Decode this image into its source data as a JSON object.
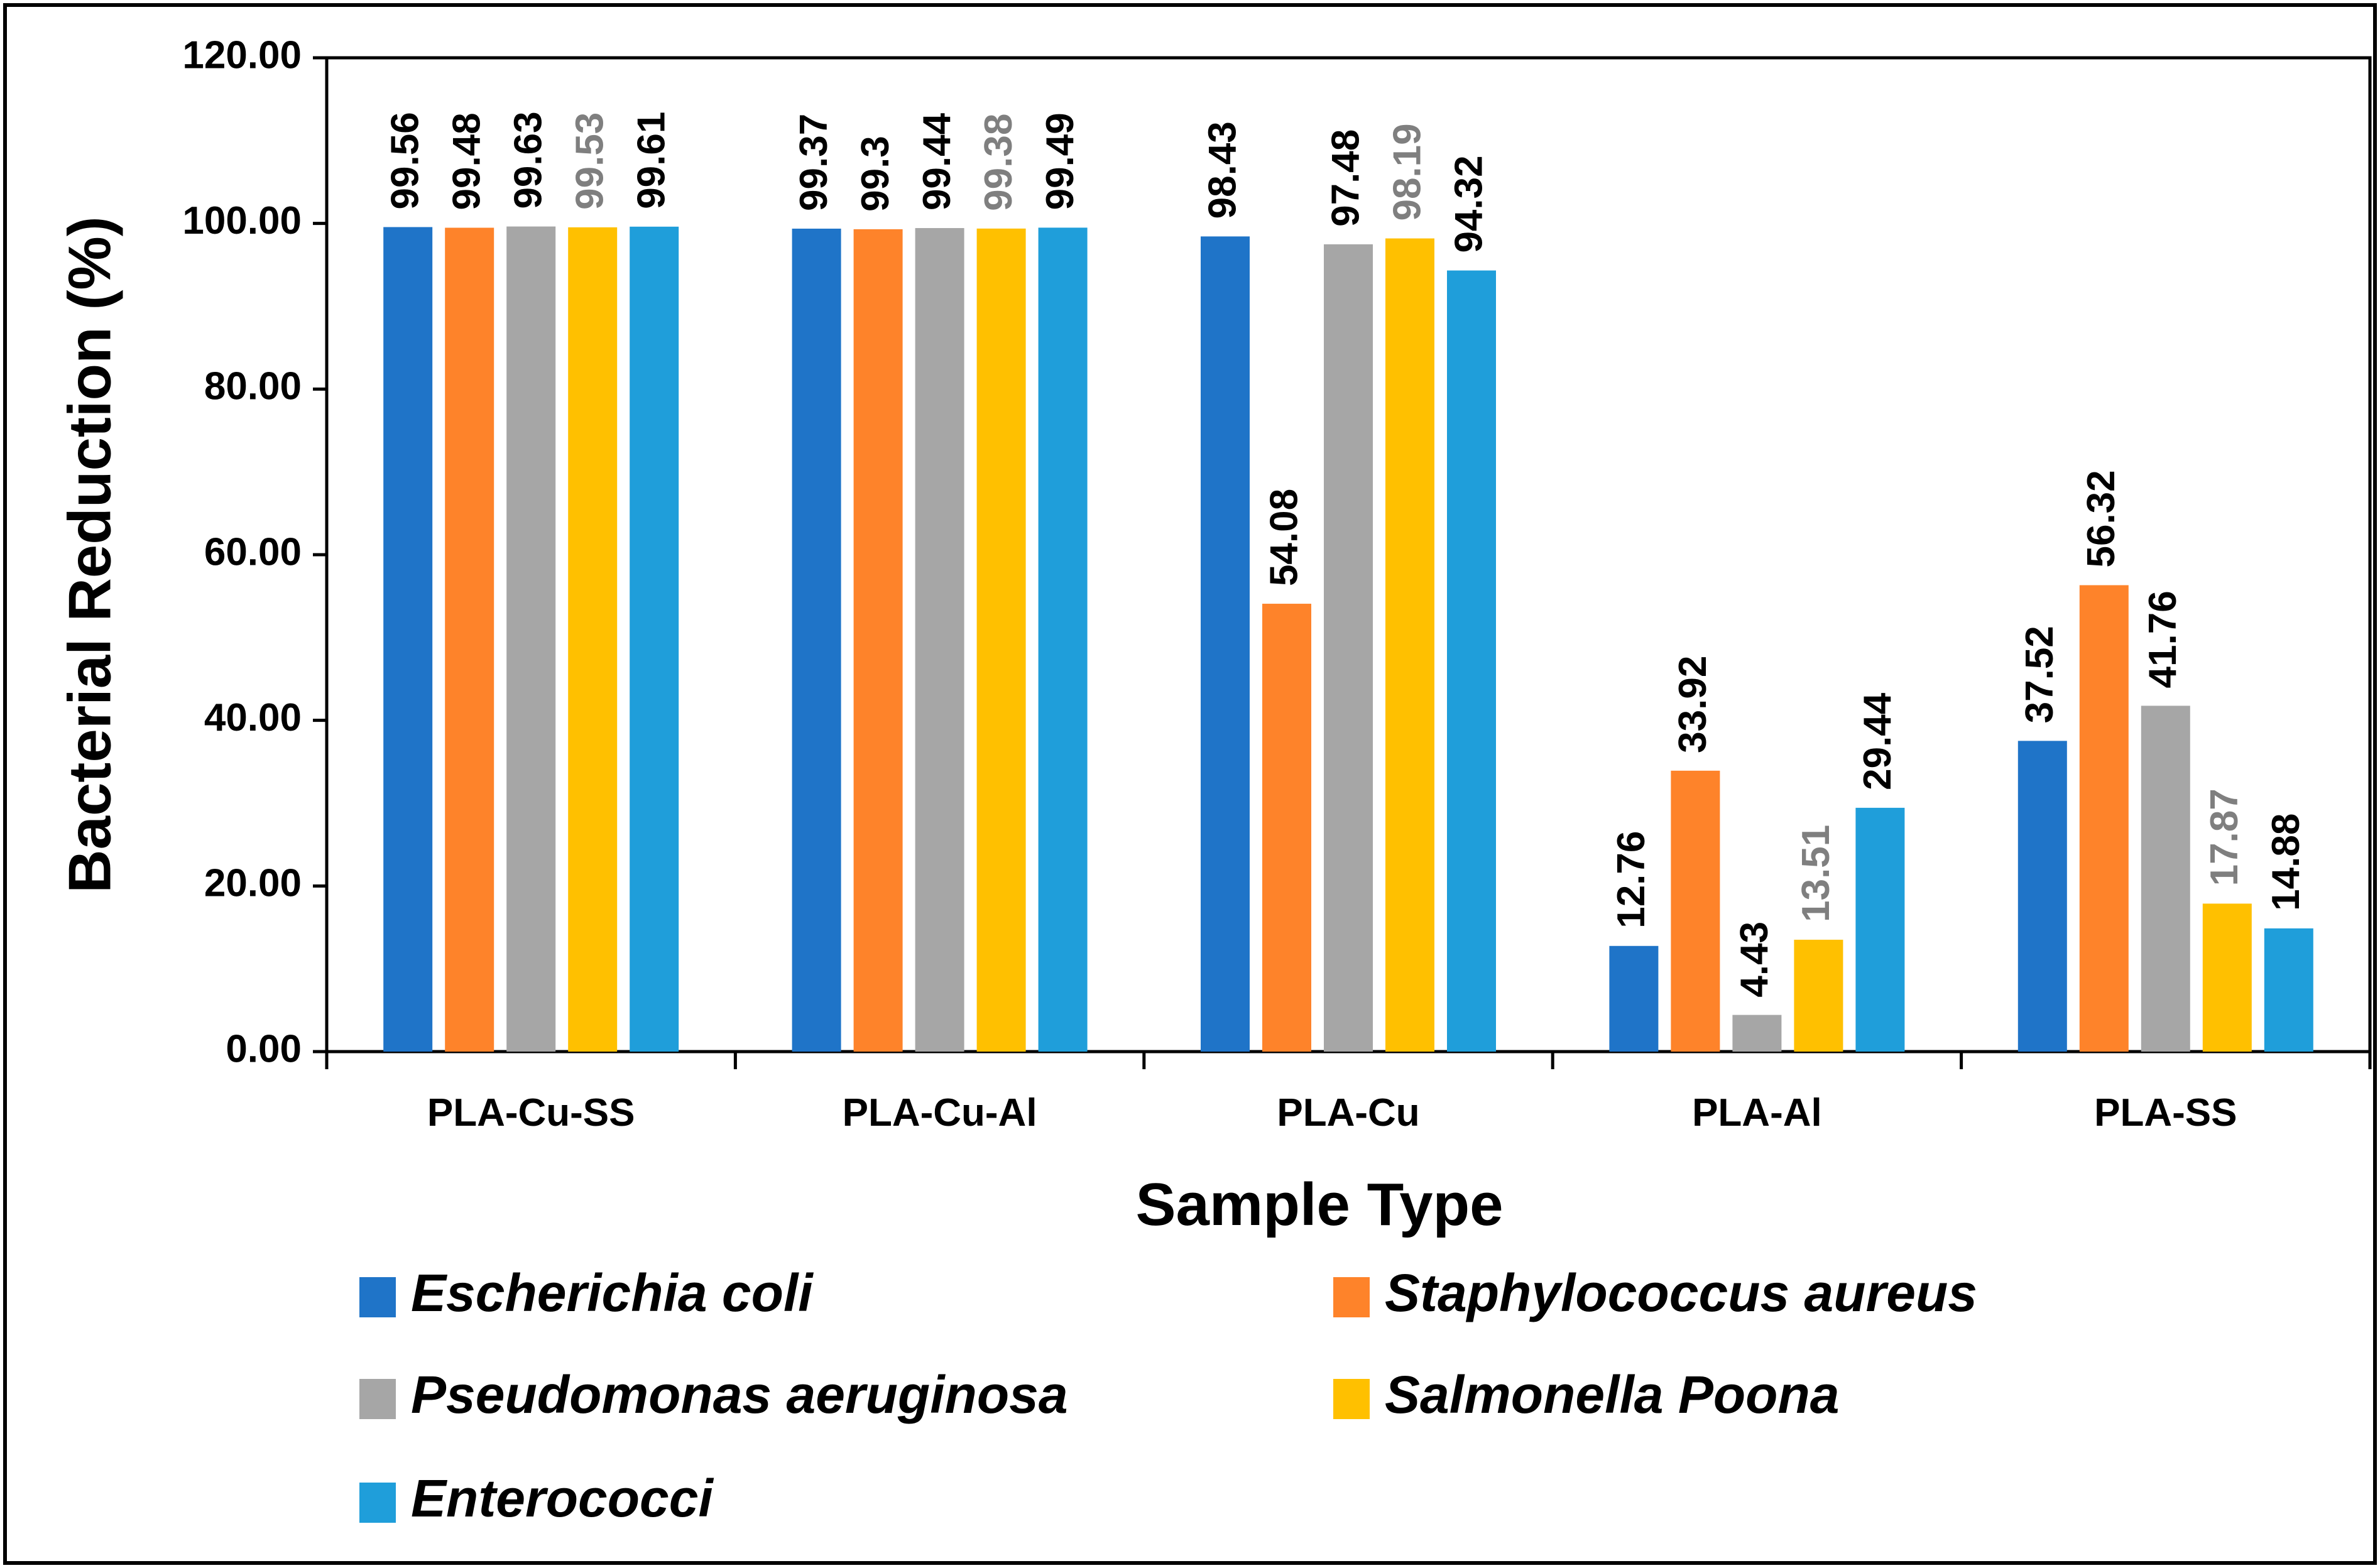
{
  "chart_data": {
    "type": "bar",
    "title": "",
    "xlabel": "Sample Type",
    "ylabel": "Bacterial Reduction (%)",
    "ylim": [
      0,
      120
    ],
    "yticks": [
      "0.00",
      "20.00",
      "40.00",
      "60.00",
      "80.00",
      "100.00",
      "120.00"
    ],
    "categories": [
      "PLA-Cu-SS",
      "PLA-Cu-Al",
      "PLA-Cu",
      "PLA-Al",
      "PLA-SS"
    ],
    "legend_position": "bottom",
    "series": [
      {
        "name": "Escherichia coli",
        "color": "#1F74C8",
        "label_color": "#000000",
        "values": [
          99.56,
          99.37,
          98.43,
          12.76,
          37.52
        ],
        "labels": [
          "99.56",
          "99.37",
          "98.43",
          "12.76",
          "37.52"
        ]
      },
      {
        "name": "Staphylococcus aureus",
        "color": "#FE832A",
        "label_color": "#000000",
        "values": [
          99.48,
          99.3,
          54.08,
          33.92,
          56.32
        ],
        "labels": [
          "99.48",
          "99.3",
          "54.08",
          "33.92",
          "56.32"
        ]
      },
      {
        "name": "Pseudomonas aeruginosa",
        "color": "#A6A6A6",
        "label_color": "#000000",
        "values": [
          99.63,
          99.44,
          97.48,
          4.43,
          41.76
        ],
        "labels": [
          "99.63",
          "99.44",
          "97.48",
          "4.43",
          "41.76"
        ]
      },
      {
        "name": "Salmonella Poona",
        "color": "#FFC000",
        "label_color": "#7F7F7F",
        "values": [
          99.53,
          99.38,
          98.19,
          13.51,
          17.87
        ],
        "labels": [
          "99.53",
          "99.38",
          "98.19",
          "13.51",
          "17.87"
        ]
      },
      {
        "name": "Enterococci",
        "color": "#1F9EDA",
        "label_color": "#000000",
        "values": [
          99.61,
          99.49,
          94.32,
          29.44,
          14.88
        ],
        "labels": [
          "99.61",
          "99.49",
          "94.32",
          "29.44",
          "14.88"
        ]
      }
    ]
  }
}
